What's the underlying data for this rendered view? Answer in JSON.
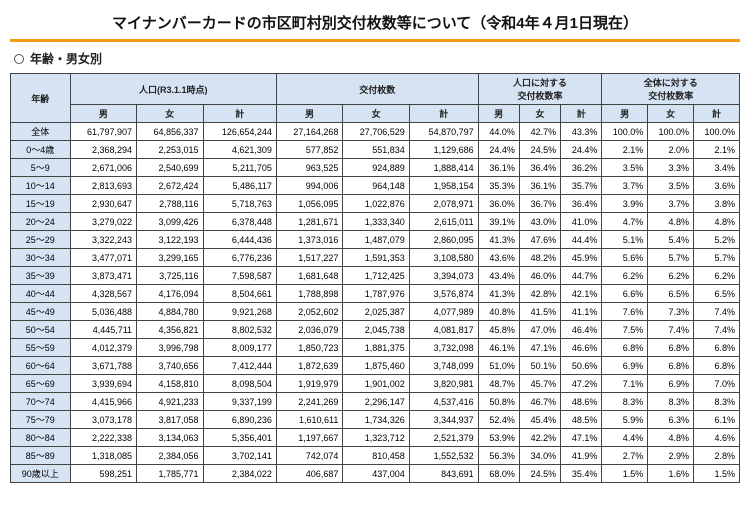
{
  "title": "マイナンバーカードの市区町村別交付枚数等について（令和4年４月1日現在）",
  "subtitle": "年齢・男女別",
  "headers": {
    "age": "年齢",
    "pop_group": "人口(R3.1.1時点)",
    "issued_group": "交付枚数",
    "ratio_pop_group": "人口に対する\n交付枚数率",
    "ratio_all_group": "全体に対する\n交付枚数率",
    "m": "男",
    "f": "女",
    "t": "計"
  },
  "rows": [
    {
      "label": "全体",
      "pm": "61,797,907",
      "pf": "64,856,337",
      "pt": "126,654,244",
      "im": "27,164,268",
      "if": "27,706,529",
      "it": "54,870,797",
      "r1m": "44.0%",
      "r1f": "42.7%",
      "r1t": "43.3%",
      "r2m": "100.0%",
      "r2f": "100.0%",
      "r2t": "100.0%"
    },
    {
      "label": "0～4歳",
      "pm": "2,368,294",
      "pf": "2,253,015",
      "pt": "4,621,309",
      "im": "577,852",
      "if": "551,834",
      "it": "1,129,686",
      "r1m": "24.4%",
      "r1f": "24.5%",
      "r1t": "24.4%",
      "r2m": "2.1%",
      "r2f": "2.0%",
      "r2t": "2.1%"
    },
    {
      "label": "5～9",
      "pm": "2,671,006",
      "pf": "2,540,699",
      "pt": "5,211,705",
      "im": "963,525",
      "if": "924,889",
      "it": "1,888,414",
      "r1m": "36.1%",
      "r1f": "36.4%",
      "r1t": "36.2%",
      "r2m": "3.5%",
      "r2f": "3.3%",
      "r2t": "3.4%"
    },
    {
      "label": "10～14",
      "pm": "2,813,693",
      "pf": "2,672,424",
      "pt": "5,486,117",
      "im": "994,006",
      "if": "964,148",
      "it": "1,958,154",
      "r1m": "35.3%",
      "r1f": "36.1%",
      "r1t": "35.7%",
      "r2m": "3.7%",
      "r2f": "3.5%",
      "r2t": "3.6%"
    },
    {
      "label": "15～19",
      "pm": "2,930,647",
      "pf": "2,788,116",
      "pt": "5,718,763",
      "im": "1,056,095",
      "if": "1,022,876",
      "it": "2,078,971",
      "r1m": "36.0%",
      "r1f": "36.7%",
      "r1t": "36.4%",
      "r2m": "3.9%",
      "r2f": "3.7%",
      "r2t": "3.8%"
    },
    {
      "label": "20～24",
      "pm": "3,279,022",
      "pf": "3,099,426",
      "pt": "6,378,448",
      "im": "1,281,671",
      "if": "1,333,340",
      "it": "2,615,011",
      "r1m": "39.1%",
      "r1f": "43.0%",
      "r1t": "41.0%",
      "r2m": "4.7%",
      "r2f": "4.8%",
      "r2t": "4.8%"
    },
    {
      "label": "25～29",
      "pm": "3,322,243",
      "pf": "3,122,193",
      "pt": "6,444,436",
      "im": "1,373,016",
      "if": "1,487,079",
      "it": "2,860,095",
      "r1m": "41.3%",
      "r1f": "47.6%",
      "r1t": "44.4%",
      "r2m": "5.1%",
      "r2f": "5.4%",
      "r2t": "5.2%"
    },
    {
      "label": "30～34",
      "pm": "3,477,071",
      "pf": "3,299,165",
      "pt": "6,776,236",
      "im": "1,517,227",
      "if": "1,591,353",
      "it": "3,108,580",
      "r1m": "43.6%",
      "r1f": "48.2%",
      "r1t": "45.9%",
      "r2m": "5.6%",
      "r2f": "5.7%",
      "r2t": "5.7%"
    },
    {
      "label": "35～39",
      "pm": "3,873,471",
      "pf": "3,725,116",
      "pt": "7,598,587",
      "im": "1,681,648",
      "if": "1,712,425",
      "it": "3,394,073",
      "r1m": "43.4%",
      "r1f": "46.0%",
      "r1t": "44.7%",
      "r2m": "6.2%",
      "r2f": "6.2%",
      "r2t": "6.2%"
    },
    {
      "label": "40～44",
      "pm": "4,328,567",
      "pf": "4,176,094",
      "pt": "8,504,661",
      "im": "1,788,898",
      "if": "1,787,976",
      "it": "3,576,874",
      "r1m": "41.3%",
      "r1f": "42.8%",
      "r1t": "42.1%",
      "r2m": "6.6%",
      "r2f": "6.5%",
      "r2t": "6.5%"
    },
    {
      "label": "45～49",
      "pm": "5,036,488",
      "pf": "4,884,780",
      "pt": "9,921,268",
      "im": "2,052,602",
      "if": "2,025,387",
      "it": "4,077,989",
      "r1m": "40.8%",
      "r1f": "41.5%",
      "r1t": "41.1%",
      "r2m": "7.6%",
      "r2f": "7.3%",
      "r2t": "7.4%"
    },
    {
      "label": "50～54",
      "pm": "4,445,711",
      "pf": "4,356,821",
      "pt": "8,802,532",
      "im": "2,036,079",
      "if": "2,045,738",
      "it": "4,081,817",
      "r1m": "45.8%",
      "r1f": "47.0%",
      "r1t": "46.4%",
      "r2m": "7.5%",
      "r2f": "7.4%",
      "r2t": "7.4%"
    },
    {
      "label": "55～59",
      "pm": "4,012,379",
      "pf": "3,996,798",
      "pt": "8,009,177",
      "im": "1,850,723",
      "if": "1,881,375",
      "it": "3,732,098",
      "r1m": "46.1%",
      "r1f": "47.1%",
      "r1t": "46.6%",
      "r2m": "6.8%",
      "r2f": "6.8%",
      "r2t": "6.8%"
    },
    {
      "label": "60～64",
      "pm": "3,671,788",
      "pf": "3,740,656",
      "pt": "7,412,444",
      "im": "1,872,639",
      "if": "1,875,460",
      "it": "3,748,099",
      "r1m": "51.0%",
      "r1f": "50.1%",
      "r1t": "50.6%",
      "r2m": "6.9%",
      "r2f": "6.8%",
      "r2t": "6.8%"
    },
    {
      "label": "65～69",
      "pm": "3,939,694",
      "pf": "4,158,810",
      "pt": "8,098,504",
      "im": "1,919,979",
      "if": "1,901,002",
      "it": "3,820,981",
      "r1m": "48.7%",
      "r1f": "45.7%",
      "r1t": "47.2%",
      "r2m": "7.1%",
      "r2f": "6.9%",
      "r2t": "7.0%"
    },
    {
      "label": "70～74",
      "pm": "4,415,966",
      "pf": "4,921,233",
      "pt": "9,337,199",
      "im": "2,241,269",
      "if": "2,296,147",
      "it": "4,537,416",
      "r1m": "50.8%",
      "r1f": "46.7%",
      "r1t": "48.6%",
      "r2m": "8.3%",
      "r2f": "8.3%",
      "r2t": "8.3%"
    },
    {
      "label": "75～79",
      "pm": "3,073,178",
      "pf": "3,817,058",
      "pt": "6,890,236",
      "im": "1,610,611",
      "if": "1,734,326",
      "it": "3,344,937",
      "r1m": "52.4%",
      "r1f": "45.4%",
      "r1t": "48.5%",
      "r2m": "5.9%",
      "r2f": "6.3%",
      "r2t": "6.1%"
    },
    {
      "label": "80～84",
      "pm": "2,222,338",
      "pf": "3,134,063",
      "pt": "5,356,401",
      "im": "1,197,667",
      "if": "1,323,712",
      "it": "2,521,379",
      "r1m": "53.9%",
      "r1f": "42.2%",
      "r1t": "47.1%",
      "r2m": "4.4%",
      "r2f": "4.8%",
      "r2t": "4.6%"
    },
    {
      "label": "85～89",
      "pm": "1,318,085",
      "pf": "2,384,056",
      "pt": "3,702,141",
      "im": "742,074",
      "if": "810,458",
      "it": "1,552,532",
      "r1m": "56.3%",
      "r1f": "34.0%",
      "r1t": "41.9%",
      "r2m": "2.7%",
      "r2f": "2.9%",
      "r2t": "2.8%"
    },
    {
      "label": "90歳以上",
      "pm": "598,251",
      "pf": "1,785,771",
      "pt": "2,384,022",
      "im": "406,687",
      "if": "437,004",
      "it": "843,691",
      "r1m": "68.0%",
      "r1f": "24.5%",
      "r1t": "35.4%",
      "r2m": "1.5%",
      "r2f": "1.6%",
      "r2t": "1.5%"
    }
  ]
}
